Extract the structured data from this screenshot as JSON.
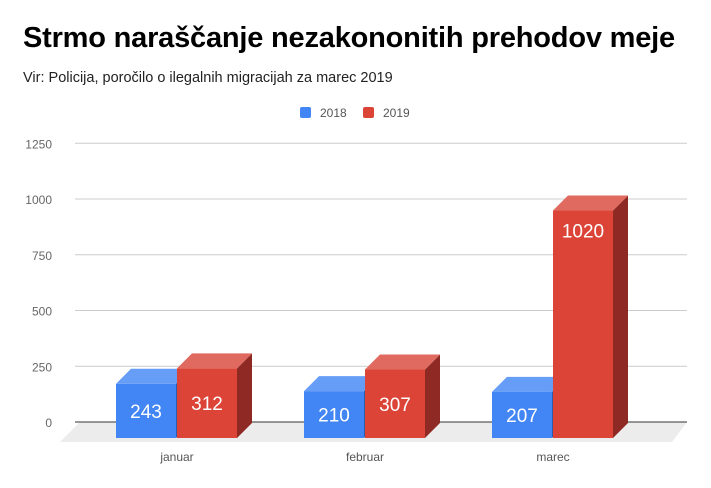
{
  "chart_data": {
    "type": "bar",
    "title": "Strmo naraščanje nezakononitih prehodov meje",
    "subtitle": "Vir: Policija, poročilo o ilegalnih migracijah za marec 2019",
    "categories": [
      "januar",
      "februar",
      "marec"
    ],
    "series": [
      {
        "name": "2018",
        "values": [
          243,
          210,
          207
        ],
        "color": "#4285f4",
        "top": "#669df6",
        "side": "#2a5db0"
      },
      {
        "name": "2019",
        "values": [
          312,
          307,
          1020
        ],
        "color": "#db4437",
        "top": "#e06a60",
        "side": "#8e2a23"
      }
    ],
    "yticks": [
      0,
      250,
      500,
      750,
      1000,
      1250
    ],
    "ylim": [
      0,
      1250
    ],
    "legend": "top-center",
    "grid": true,
    "xlabel": "",
    "ylabel": ""
  }
}
